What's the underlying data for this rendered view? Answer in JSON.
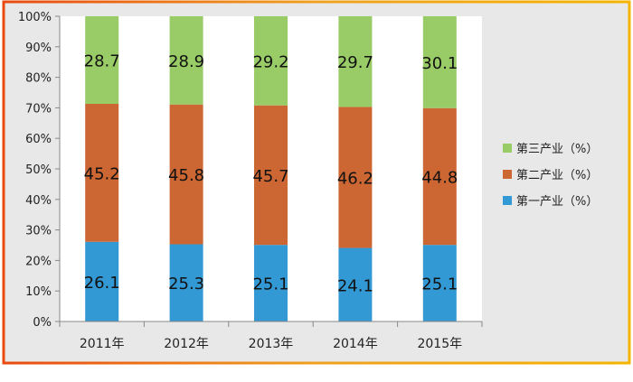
{
  "chart_data": {
    "type": "bar",
    "stacked": true,
    "categories": [
      "2011年",
      "2012年",
      "2013年",
      "2014年",
      "2015年"
    ],
    "series": [
      {
        "name": "第一产业（%）",
        "color": "#3399d4",
        "values": [
          26.1,
          25.3,
          25.1,
          24.1,
          25.1
        ]
      },
      {
        "name": "第二产业（%）",
        "color": "#cc6633",
        "values": [
          45.2,
          45.8,
          45.7,
          46.2,
          44.8
        ]
      },
      {
        "name": "第三产业（%）",
        "color": "#99cc66",
        "values": [
          28.7,
          28.9,
          29.2,
          29.7,
          30.1
        ]
      }
    ],
    "yticks": [
      "0%",
      "10%",
      "20%",
      "30%",
      "40%",
      "50%",
      "60%",
      "70%",
      "80%",
      "90%",
      "100%"
    ],
    "ylim": [
      0,
      100
    ],
    "grid": false,
    "legend_position": "right"
  },
  "colors": {
    "background": "#e8e8e8",
    "plot_background": "#ffffff",
    "frame_top": "#f4b400",
    "frame_bottom": "#e05a10"
  }
}
